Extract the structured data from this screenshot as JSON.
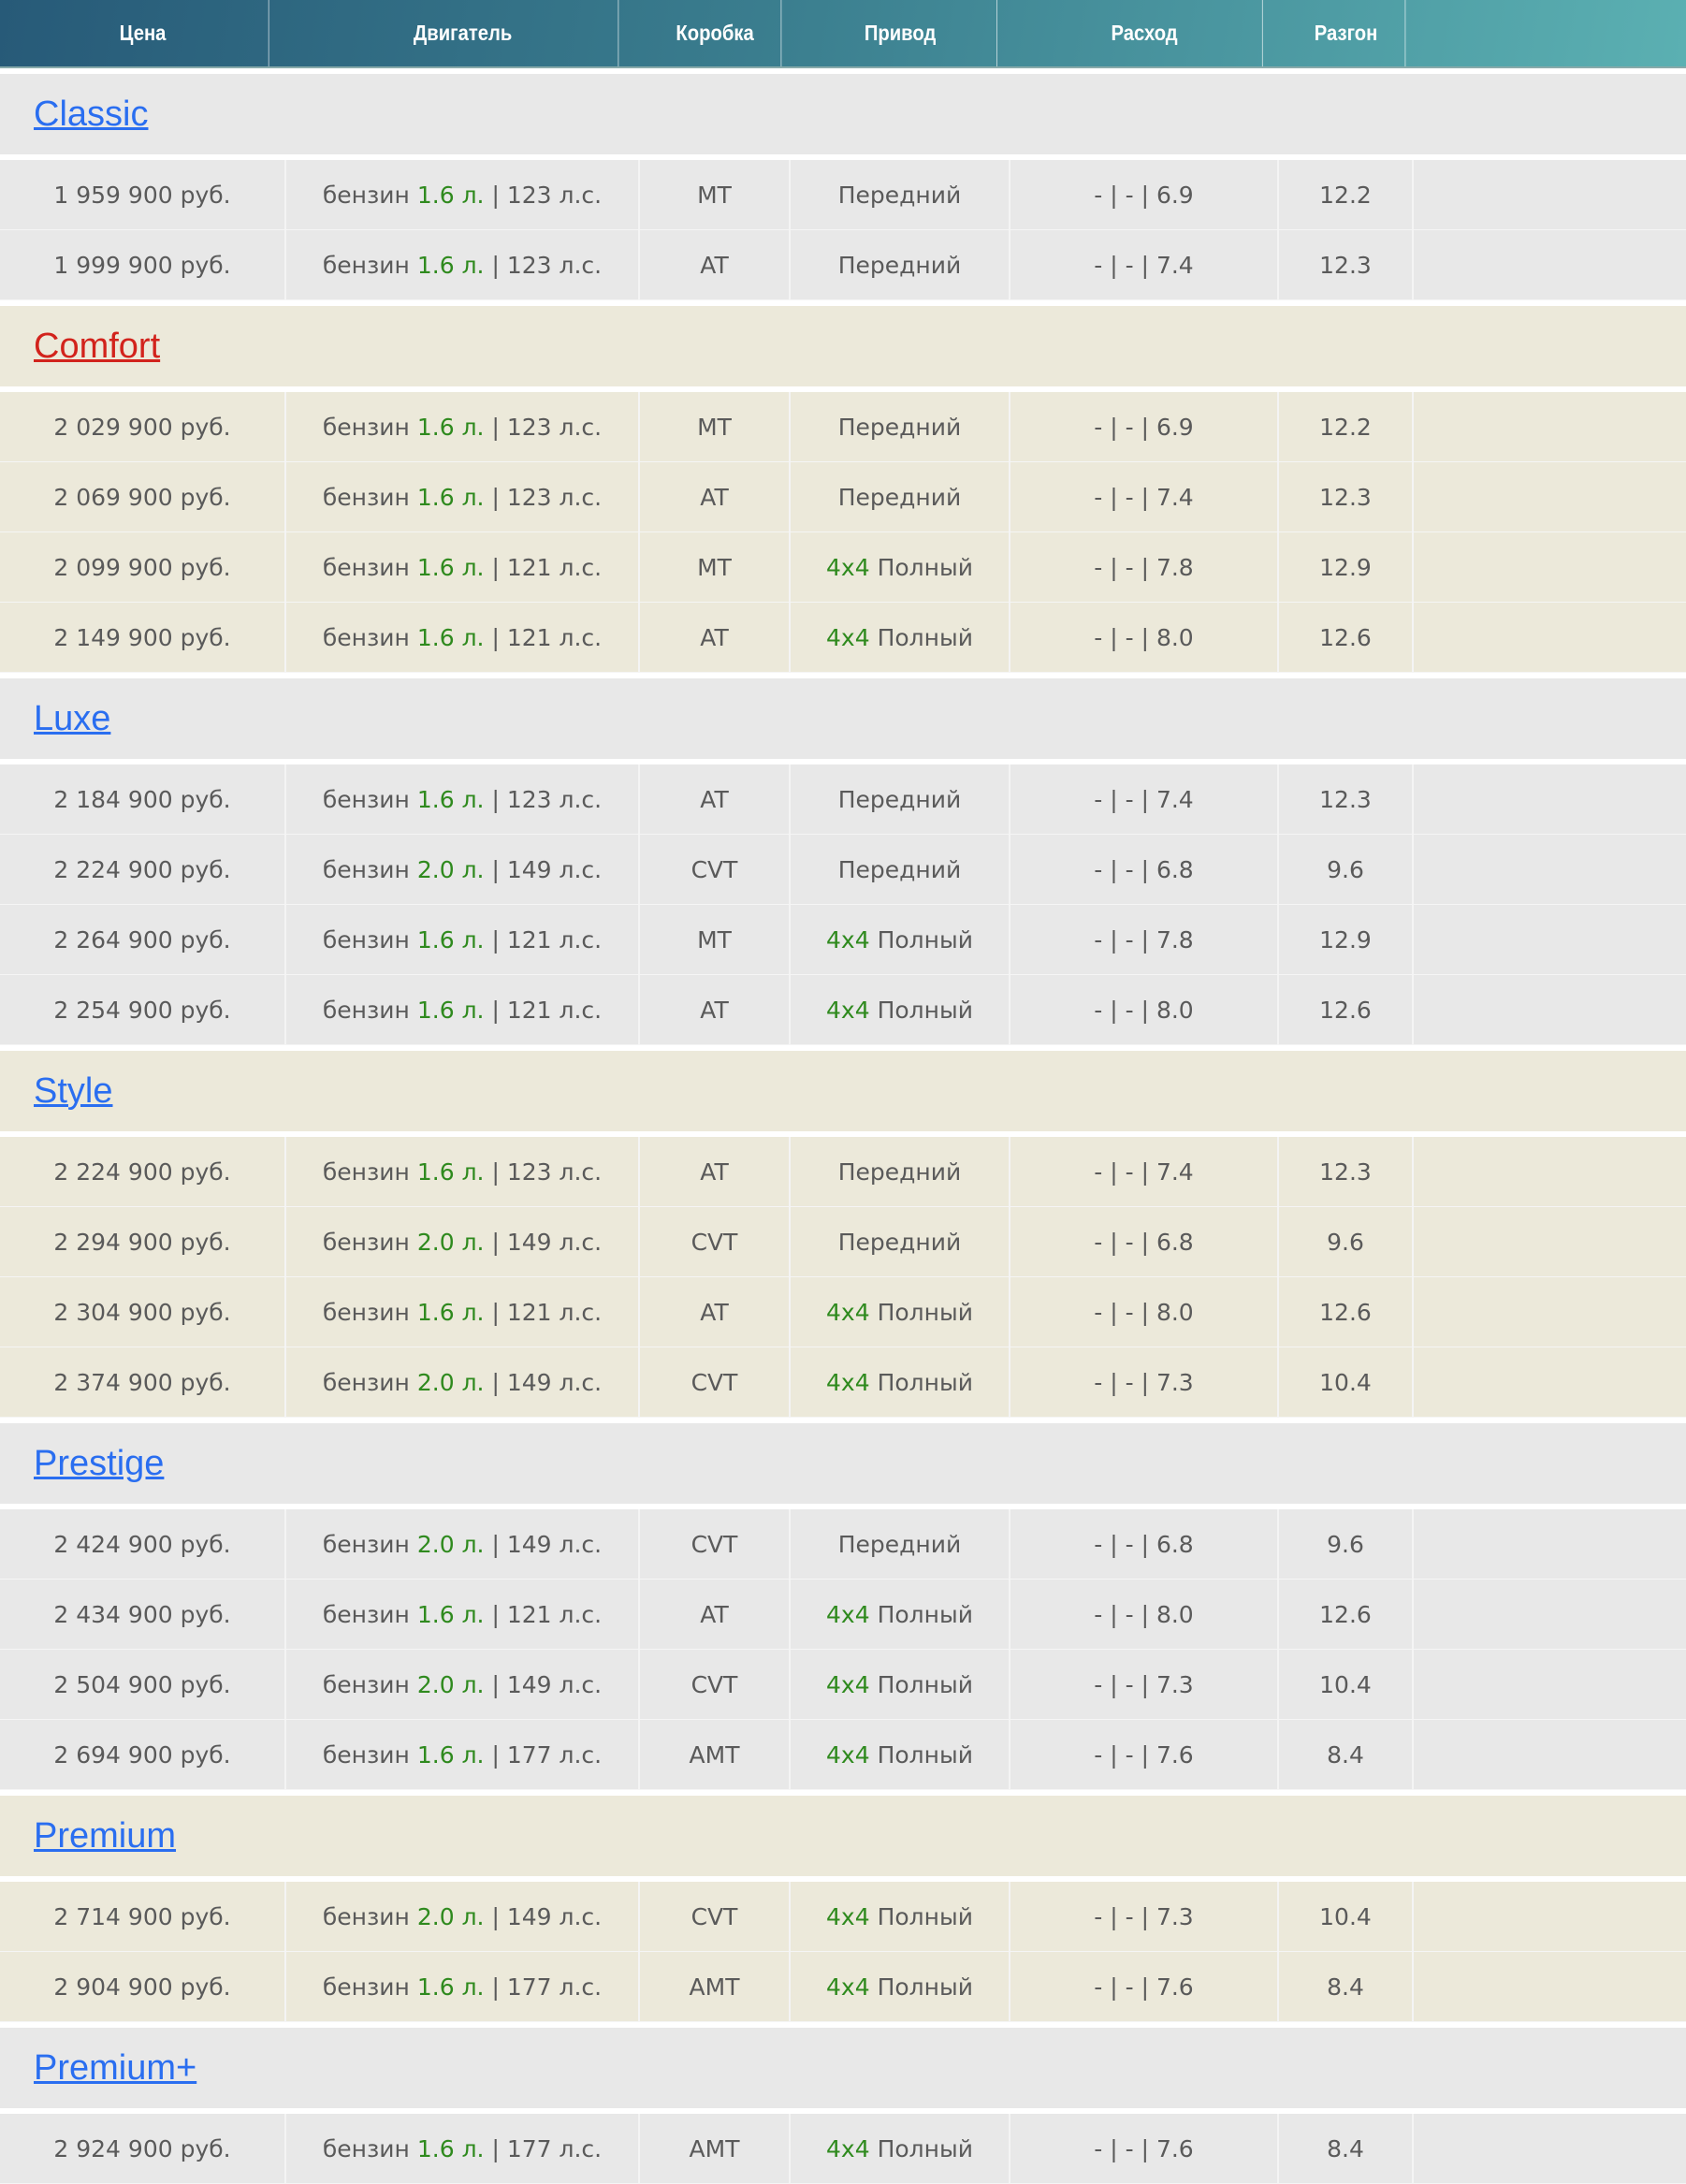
{
  "colors": {
    "accent_link": "#2a6ef0",
    "highlight_link": "#d2231c",
    "green": "#2f8a1e",
    "header_start": "#275a78",
    "header_end": "#5bb0b2"
  },
  "columns": [
    "Цена",
    "Двигатель",
    "Коробка",
    "Привод",
    "Расход",
    "Разгон",
    ""
  ],
  "labels": {
    "sep": " | ",
    "full_prefix": "4x4",
    "full": " Полный"
  },
  "groups": [
    {
      "name": "Classic",
      "style": "grey",
      "link": "blue",
      "rows": [
        {
          "price": "1 959 900 руб.",
          "fuel": "бензин ",
          "vol": "1.6 л.",
          "hp": "123 л.с.",
          "box": "MT",
          "drive": "Передний",
          "awd": false,
          "cons": "- | - | 6.9",
          "acc": "12.2"
        },
        {
          "price": "1 999 900 руб.",
          "fuel": "бензин ",
          "vol": "1.6 л.",
          "hp": "123 л.с.",
          "box": "AT",
          "drive": "Передний",
          "awd": false,
          "cons": "- | - | 7.4",
          "acc": "12.3"
        }
      ]
    },
    {
      "name": "Comfort",
      "style": "beige",
      "link": "red",
      "rows": [
        {
          "price": "2 029 900 руб.",
          "fuel": "бензин ",
          "vol": "1.6 л.",
          "hp": "123 л.с.",
          "box": "MT",
          "drive": "Передний",
          "awd": false,
          "cons": "- | - | 6.9",
          "acc": "12.2"
        },
        {
          "price": "2 069 900 руб.",
          "fuel": "бензин ",
          "vol": "1.6 л.",
          "hp": "123 л.с.",
          "box": "AT",
          "drive": "Передний",
          "awd": false,
          "cons": "- | - | 7.4",
          "acc": "12.3"
        },
        {
          "price": "2 099 900 руб.",
          "fuel": "бензин ",
          "vol": "1.6 л.",
          "hp": "121 л.с.",
          "box": "MT",
          "drive": "Полный",
          "awd": true,
          "cons": "- | - | 7.8",
          "acc": "12.9"
        },
        {
          "price": "2 149 900 руб.",
          "fuel": "бензин ",
          "vol": "1.6 л.",
          "hp": "121 л.с.",
          "box": "AT",
          "drive": "Полный",
          "awd": true,
          "cons": "- | - | 8.0",
          "acc": "12.6"
        }
      ]
    },
    {
      "name": "Luxe",
      "style": "grey",
      "link": "blue",
      "rows": [
        {
          "price": "2 184 900 руб.",
          "fuel": "бензин ",
          "vol": "1.6 л.",
          "hp": "123 л.с.",
          "box": "AT",
          "drive": "Передний",
          "awd": false,
          "cons": "- | - | 7.4",
          "acc": "12.3"
        },
        {
          "price": "2 224 900 руб.",
          "fuel": "бензин ",
          "vol": "2.0 л.",
          "hp": "149 л.с.",
          "box": "CVT",
          "drive": "Передний",
          "awd": false,
          "cons": "- | - | 6.8",
          "acc": "9.6"
        },
        {
          "price": "2 264 900 руб.",
          "fuel": "бензин ",
          "vol": "1.6 л.",
          "hp": "121 л.с.",
          "box": "MT",
          "drive": "Полный",
          "awd": true,
          "cons": "- | - | 7.8",
          "acc": "12.9"
        },
        {
          "price": "2 254 900 руб.",
          "fuel": "бензин ",
          "vol": "1.6 л.",
          "hp": "121 л.с.",
          "box": "AT",
          "drive": "Полный",
          "awd": true,
          "cons": "- | - | 8.0",
          "acc": "12.6"
        }
      ]
    },
    {
      "name": "Style",
      "style": "beige",
      "link": "blue",
      "rows": [
        {
          "price": "2 224 900 руб.",
          "fuel": "бензин ",
          "vol": "1.6 л.",
          "hp": "123 л.с.",
          "box": "AT",
          "drive": "Передний",
          "awd": false,
          "cons": "- | - | 7.4",
          "acc": "12.3"
        },
        {
          "price": "2 294 900 руб.",
          "fuel": "бензин ",
          "vol": "2.0 л.",
          "hp": "149 л.с.",
          "box": "CVT",
          "drive": "Передний",
          "awd": false,
          "cons": "- | - | 6.8",
          "acc": "9.6"
        },
        {
          "price": "2 304 900 руб.",
          "fuel": "бензин ",
          "vol": "1.6 л.",
          "hp": "121 л.с.",
          "box": "AT",
          "drive": "Полный",
          "awd": true,
          "cons": "- | - | 8.0",
          "acc": "12.6"
        },
        {
          "price": "2 374 900 руб.",
          "fuel": "бензин ",
          "vol": "2.0 л.",
          "hp": "149 л.с.",
          "box": "CVT",
          "drive": "Полный",
          "awd": true,
          "cons": "- | - | 7.3",
          "acc": "10.4"
        }
      ]
    },
    {
      "name": "Prestige",
      "style": "grey",
      "link": "blue",
      "rows": [
        {
          "price": "2 424 900 руб.",
          "fuel": "бензин ",
          "vol": "2.0 л.",
          "hp": "149 л.с.",
          "box": "CVT",
          "drive": "Передний",
          "awd": false,
          "cons": "- | - | 6.8",
          "acc": "9.6"
        },
        {
          "price": "2 434 900 руб.",
          "fuel": "бензин ",
          "vol": "1.6 л.",
          "hp": "121 л.с.",
          "box": "AT",
          "drive": "Полный",
          "awd": true,
          "cons": "- | - | 8.0",
          "acc": "12.6"
        },
        {
          "price": "2 504 900 руб.",
          "fuel": "бензин ",
          "vol": "2.0 л.",
          "hp": "149 л.с.",
          "box": "CVT",
          "drive": "Полный",
          "awd": true,
          "cons": "- | - | 7.3",
          "acc": "10.4"
        },
        {
          "price": "2 694 900 руб.",
          "fuel": "бензин ",
          "vol": "1.6 л.",
          "hp": "177 л.с.",
          "box": "AMT",
          "drive": "Полный",
          "awd": true,
          "cons": "- | - | 7.6",
          "acc": "8.4"
        }
      ]
    },
    {
      "name": "Premium",
      "style": "beige",
      "link": "blue",
      "rows": [
        {
          "price": "2 714 900 руб.",
          "fuel": "бензин ",
          "vol": "2.0 л.",
          "hp": "149 л.с.",
          "box": "CVT",
          "drive": "Полный",
          "awd": true,
          "cons": "- | - | 7.3",
          "acc": "10.4"
        },
        {
          "price": "2 904 900 руб.",
          "fuel": "бензин ",
          "vol": "1.6 л.",
          "hp": "177 л.с.",
          "box": "AMT",
          "drive": "Полный",
          "awd": true,
          "cons": "- | - | 7.6",
          "acc": "8.4"
        }
      ]
    },
    {
      "name": "Premium+",
      "style": "grey",
      "link": "blue",
      "rows": [
        {
          "price": "2 924 900 руб.",
          "fuel": "бензин ",
          "vol": "1.6 л.",
          "hp": "177 л.с.",
          "box": "AMT",
          "drive": "Полный",
          "awd": true,
          "cons": "- | - | 7.6",
          "acc": "8.4"
        }
      ]
    }
  ]
}
